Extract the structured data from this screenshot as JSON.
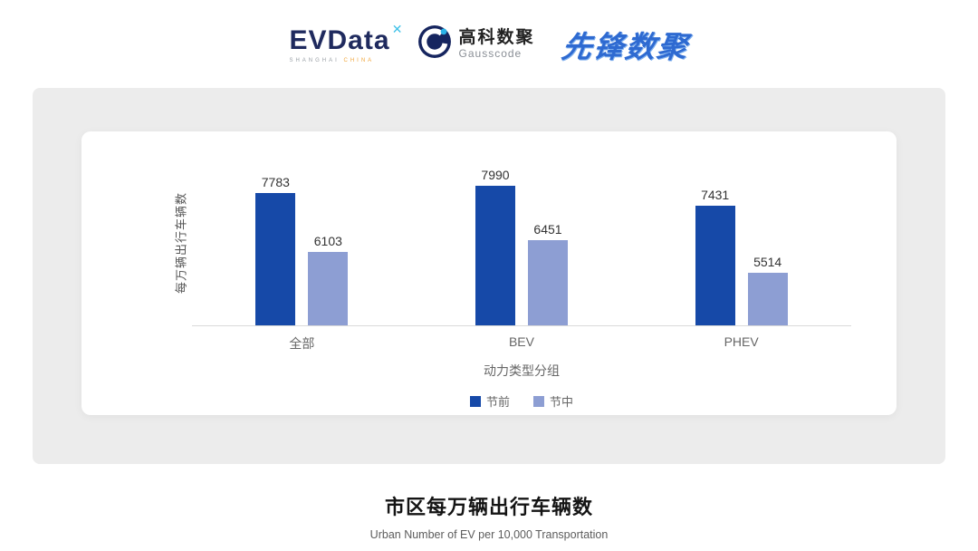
{
  "header": {
    "evdata": {
      "name": "EVData",
      "mark": "✕",
      "caption_1": "SHANGHAI",
      "caption_2": "CHINA"
    },
    "gausscode": {
      "cn": "高科数聚",
      "en": "Gausscode"
    },
    "pioneer": {
      "text": "先锋数聚"
    }
  },
  "chart_data": {
    "type": "bar",
    "categories": [
      "全部",
      "BEV",
      "PHEV"
    ],
    "series": [
      {
        "name": "节前",
        "color": "#1649a8",
        "values": [
          7783,
          7990,
          7431
        ]
      },
      {
        "name": "节中",
        "color": "#8d9ed3",
        "values": [
          6103,
          6451,
          5514
        ]
      }
    ],
    "xlabel": "动力类型分组",
    "ylabel": "每万辆出行车辆数",
    "ylim": [
      4000,
      8800
    ],
    "grid": false,
    "legend_position": "bottom",
    "value_labels": true
  },
  "footer": {
    "title": "市区每万辆出行车辆数",
    "subtitle": "Urban Number of EV per 10,000 Transportation"
  }
}
